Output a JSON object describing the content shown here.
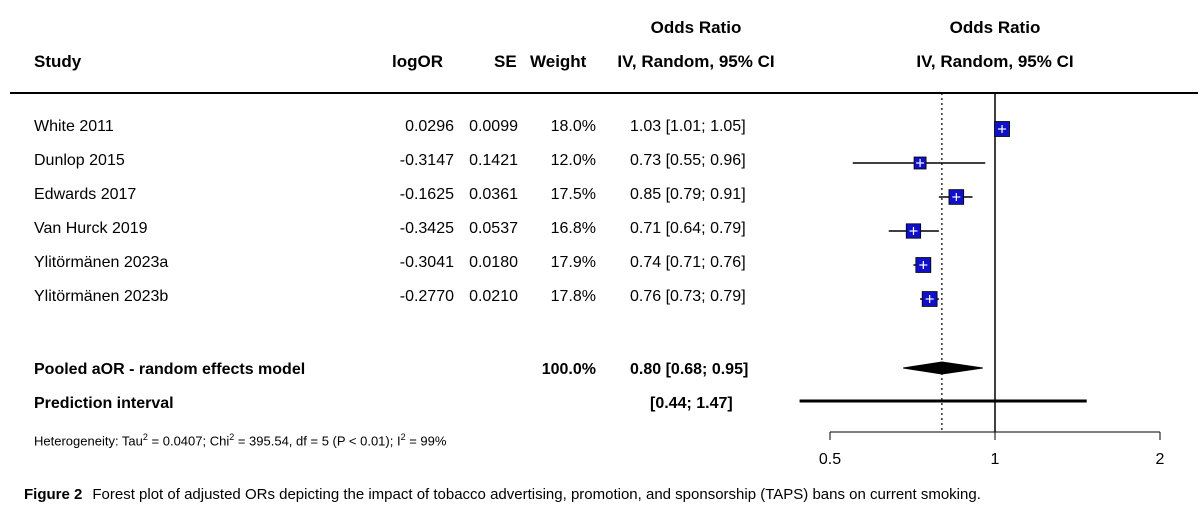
{
  "headers": {
    "study": "Study",
    "logor": "logOR",
    "se": "SE",
    "weight": "Weight",
    "or_ci_top": "Odds Ratio",
    "or_ci_bottom": "IV, Random, 95% CI",
    "plot_top": "Odds Ratio",
    "plot_bottom": "IV, Random, 95% CI"
  },
  "pooled": {
    "label": "Pooled aOR - random effects model",
    "weight": "100.0%",
    "ci_text": "0.80 [0.68; 0.95]"
  },
  "prediction": {
    "label": "Prediction interval",
    "ci_text": "[0.44; 1.47]"
  },
  "heterogeneity": {
    "prefix": "Heterogeneity: Tau",
    "tau2": "2",
    "tau_val": " = 0.0407; Chi",
    "chi2": "2",
    "chi_val": " = 395.54, df = 5 (P < 0.01); I",
    "i2": "2",
    "i_val": " = 99%"
  },
  "caption": {
    "label": "Figure 2",
    "text": "Forest plot of adjusted ORs depicting the impact of tobacco advertising, promotion, and sponsorship (TAPS) bans on current smoking."
  },
  "chart_data": {
    "type": "forest",
    "title": "Odds Ratio IV, Random, 95% CI",
    "x_scale": "log",
    "xlim": [
      0.5,
      2
    ],
    "x_ticks": [
      "0.5",
      "1",
      "2"
    ],
    "null_line": 1,
    "pooled_line": 0.8,
    "studies": [
      {
        "name": "White 2011",
        "logOR": "0.0296",
        "SE": "0.0099",
        "weight": "18.0%",
        "ci_text": "1.03 [1.01; 1.05]",
        "or": 1.03,
        "lo": 1.01,
        "hi": 1.05,
        "w": 18.0
      },
      {
        "name": "Dunlop 2015",
        "logOR": "-0.3147",
        "SE": "0.1421",
        "weight": "12.0%",
        "ci_text": "0.73 [0.55; 0.96]",
        "or": 0.73,
        "lo": 0.55,
        "hi": 0.96,
        "w": 12.0
      },
      {
        "name": "Edwards 2017",
        "logOR": "-0.1625",
        "SE": "0.0361",
        "weight": "17.5%",
        "ci_text": "0.85 [0.79; 0.91]",
        "or": 0.85,
        "lo": 0.79,
        "hi": 0.91,
        "w": 17.5
      },
      {
        "name": "Van Hurck 2019",
        "logOR": "-0.3425",
        "SE": "0.0537",
        "weight": "16.8%",
        "ci_text": "0.71 [0.64; 0.79]",
        "or": 0.71,
        "lo": 0.64,
        "hi": 0.79,
        "w": 16.8
      },
      {
        "name": "Ylitörmänen 2023a",
        "logOR": "-0.3041",
        "SE": "0.0180",
        "weight": "17.9%",
        "ci_text": "0.74 [0.71; 0.76]",
        "or": 0.74,
        "lo": 0.71,
        "hi": 0.76,
        "w": 17.9
      },
      {
        "name": "Ylitörmänen 2023b",
        "logOR": "-0.2770",
        "SE": "0.0210",
        "weight": "17.8%",
        "ci_text": "0.76 [0.73; 0.79]",
        "or": 0.76,
        "lo": 0.73,
        "hi": 0.79,
        "w": 17.8
      }
    ],
    "pooled_estimate": {
      "or": 0.8,
      "lo": 0.68,
      "hi": 0.95
    },
    "prediction_interval": {
      "lo": 0.44,
      "hi": 1.47
    }
  }
}
